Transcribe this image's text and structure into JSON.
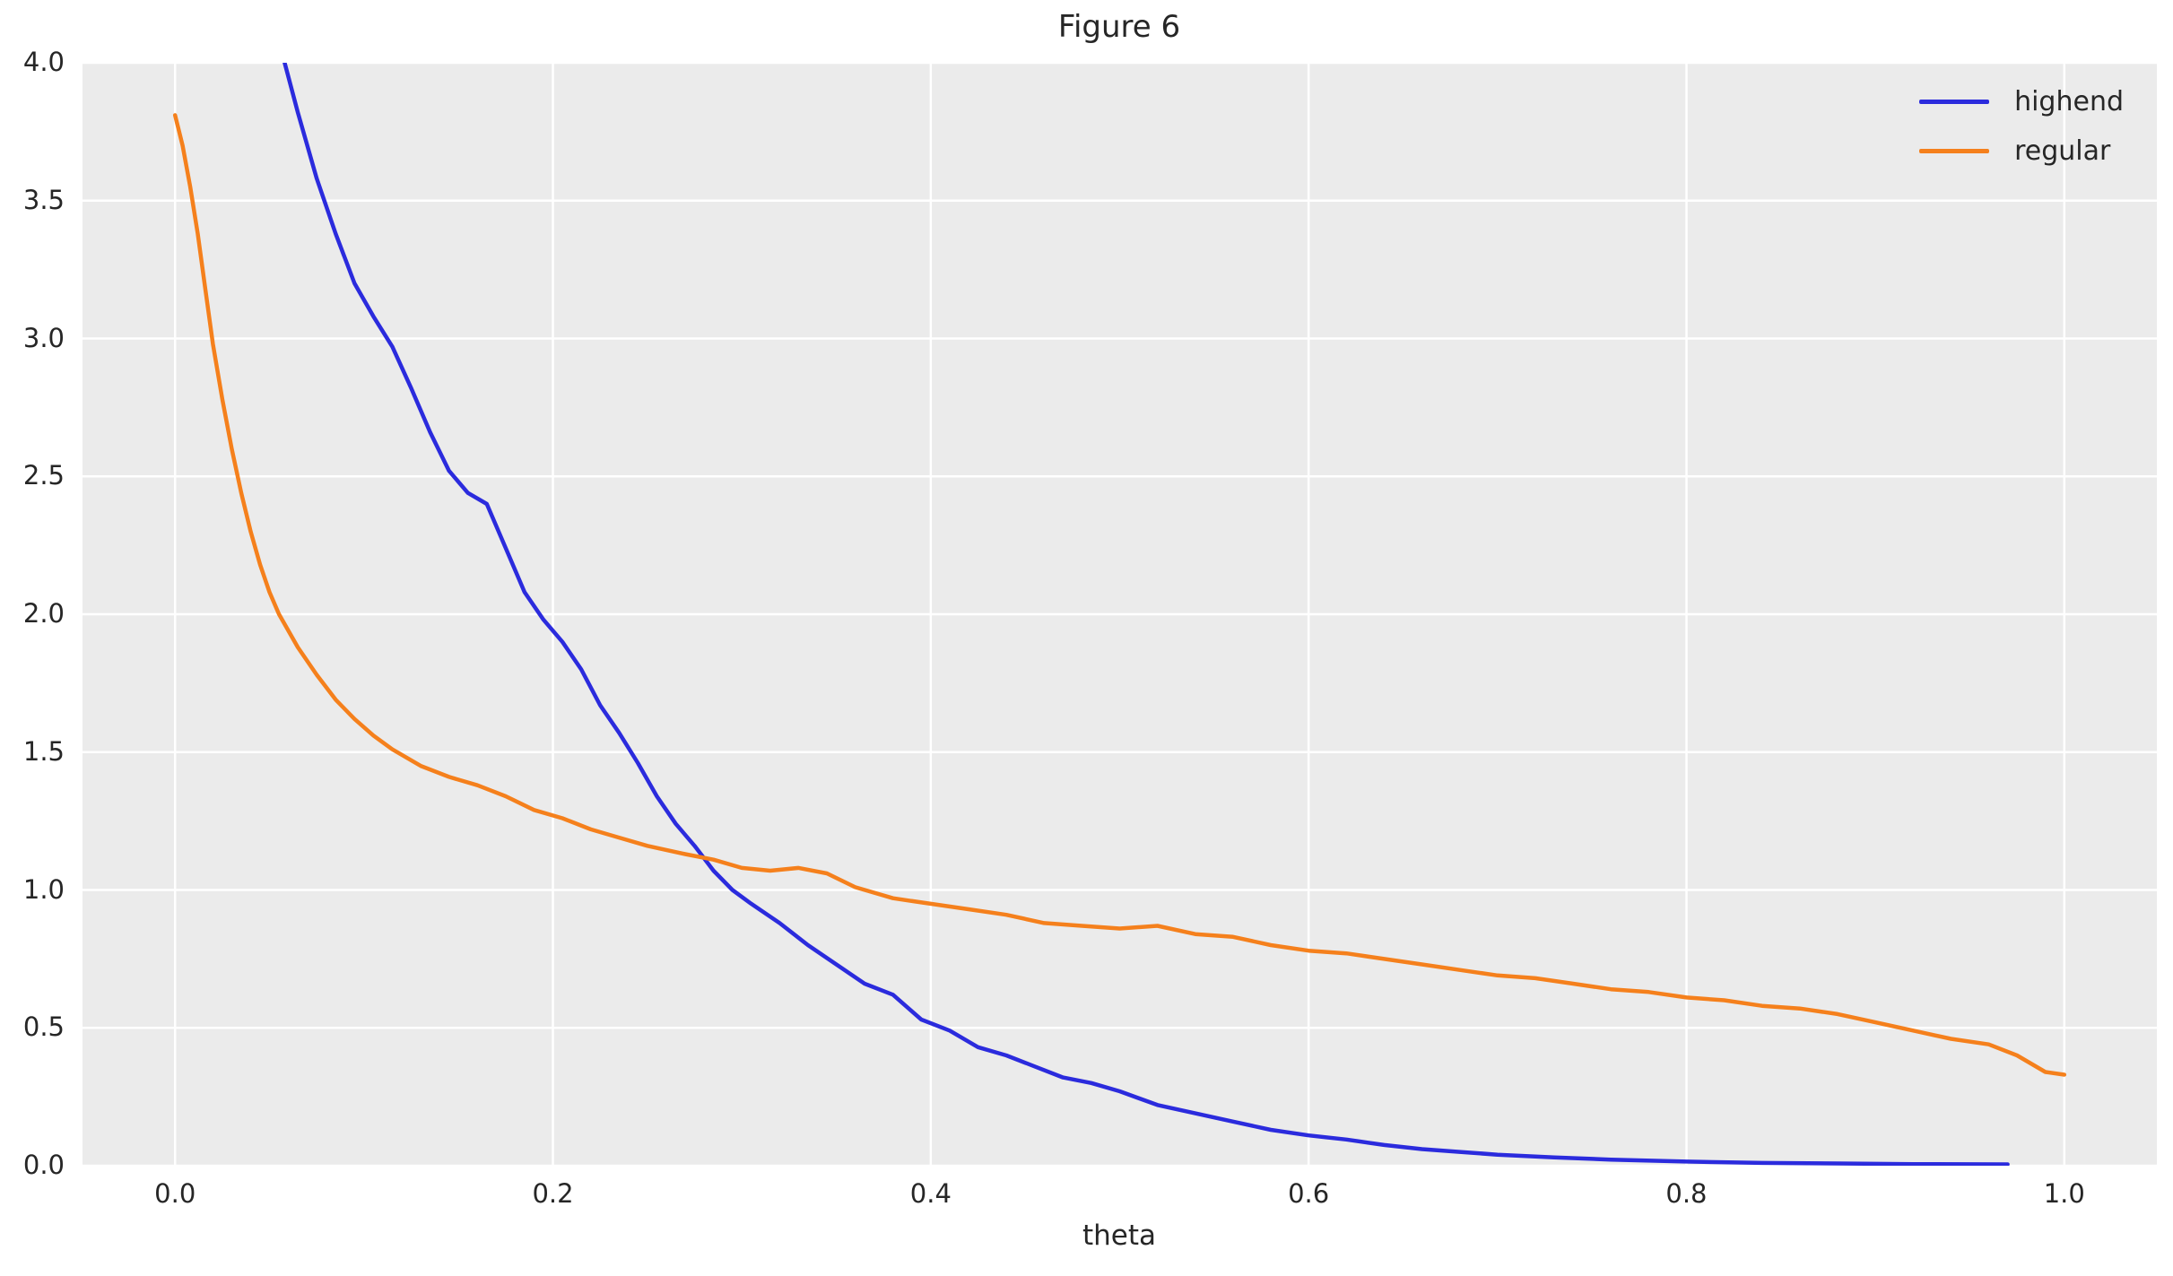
{
  "chart_data": {
    "type": "line",
    "title": "Figure 6",
    "xlabel": "theta",
    "ylabel": "",
    "xlim": [
      -0.049,
      1.049
    ],
    "ylim": [
      0.0,
      4.0
    ],
    "x_ticks": [
      0.0,
      0.2,
      0.4,
      0.6,
      0.8,
      1.0
    ],
    "x_tick_labels": [
      "0.0",
      "0.2",
      "0.4",
      "0.6",
      "0.8",
      "1.0"
    ],
    "y_ticks": [
      0.0,
      0.5,
      1.0,
      1.5,
      2.0,
      2.5,
      3.0,
      3.5,
      4.0
    ],
    "y_tick_labels": [
      "0.0",
      "0.5",
      "1.0",
      "1.5",
      "2.0",
      "2.5",
      "3.0",
      "3.5",
      "4.0"
    ],
    "grid": true,
    "legend_position": "upper right",
    "axes_background": "#ebebeb",
    "grid_color": "#ffffff",
    "text_color": "#262626",
    "series": [
      {
        "name": "highend",
        "color": "#2b2bdd",
        "x": [
          0.058,
          0.065,
          0.075,
          0.085,
          0.095,
          0.105,
          0.115,
          0.125,
          0.135,
          0.145,
          0.155,
          0.165,
          0.175,
          0.185,
          0.195,
          0.205,
          0.215,
          0.225,
          0.235,
          0.245,
          0.255,
          0.265,
          0.275,
          0.285,
          0.295,
          0.305,
          0.32,
          0.335,
          0.35,
          0.365,
          0.38,
          0.395,
          0.41,
          0.425,
          0.44,
          0.455,
          0.47,
          0.485,
          0.5,
          0.52,
          0.54,
          0.56,
          0.58,
          0.6,
          0.62,
          0.64,
          0.66,
          0.68,
          0.7,
          0.73,
          0.76,
          0.8,
          0.84,
          0.88,
          0.92,
          0.97
        ],
        "y": [
          4.0,
          3.82,
          3.58,
          3.38,
          3.2,
          3.08,
          2.97,
          2.82,
          2.66,
          2.52,
          2.44,
          2.4,
          2.24,
          2.08,
          1.98,
          1.9,
          1.8,
          1.67,
          1.57,
          1.46,
          1.34,
          1.24,
          1.16,
          1.07,
          1.0,
          0.95,
          0.88,
          0.8,
          0.73,
          0.66,
          0.62,
          0.53,
          0.49,
          0.43,
          0.4,
          0.36,
          0.32,
          0.3,
          0.27,
          0.22,
          0.19,
          0.16,
          0.13,
          0.11,
          0.095,
          0.075,
          0.06,
          0.05,
          0.04,
          0.03,
          0.022,
          0.015,
          0.01,
          0.008,
          0.006,
          0.005
        ]
      },
      {
        "name": "regular",
        "color": "#f5801c",
        "x": [
          0.0,
          0.004,
          0.008,
          0.012,
          0.016,
          0.02,
          0.025,
          0.03,
          0.035,
          0.04,
          0.045,
          0.05,
          0.055,
          0.065,
          0.075,
          0.085,
          0.095,
          0.105,
          0.115,
          0.13,
          0.145,
          0.16,
          0.175,
          0.19,
          0.205,
          0.22,
          0.235,
          0.25,
          0.27,
          0.285,
          0.3,
          0.315,
          0.33,
          0.345,
          0.36,
          0.38,
          0.4,
          0.42,
          0.44,
          0.46,
          0.48,
          0.5,
          0.52,
          0.54,
          0.56,
          0.58,
          0.6,
          0.62,
          0.64,
          0.66,
          0.68,
          0.7,
          0.72,
          0.74,
          0.76,
          0.78,
          0.8,
          0.82,
          0.84,
          0.86,
          0.88,
          0.9,
          0.92,
          0.94,
          0.96,
          0.975,
          0.99,
          1.0
        ],
        "y": [
          3.81,
          3.7,
          3.55,
          3.38,
          3.18,
          2.98,
          2.78,
          2.6,
          2.44,
          2.3,
          2.18,
          2.08,
          2.0,
          1.88,
          1.78,
          1.69,
          1.62,
          1.56,
          1.51,
          1.45,
          1.41,
          1.38,
          1.34,
          1.29,
          1.26,
          1.22,
          1.19,
          1.16,
          1.13,
          1.11,
          1.08,
          1.07,
          1.08,
          1.06,
          1.01,
          0.97,
          0.95,
          0.93,
          0.91,
          0.88,
          0.87,
          0.86,
          0.87,
          0.84,
          0.83,
          0.8,
          0.78,
          0.77,
          0.75,
          0.73,
          0.71,
          0.69,
          0.68,
          0.66,
          0.64,
          0.63,
          0.61,
          0.6,
          0.58,
          0.57,
          0.55,
          0.52,
          0.49,
          0.46,
          0.44,
          0.4,
          0.34,
          0.33
        ]
      }
    ]
  }
}
